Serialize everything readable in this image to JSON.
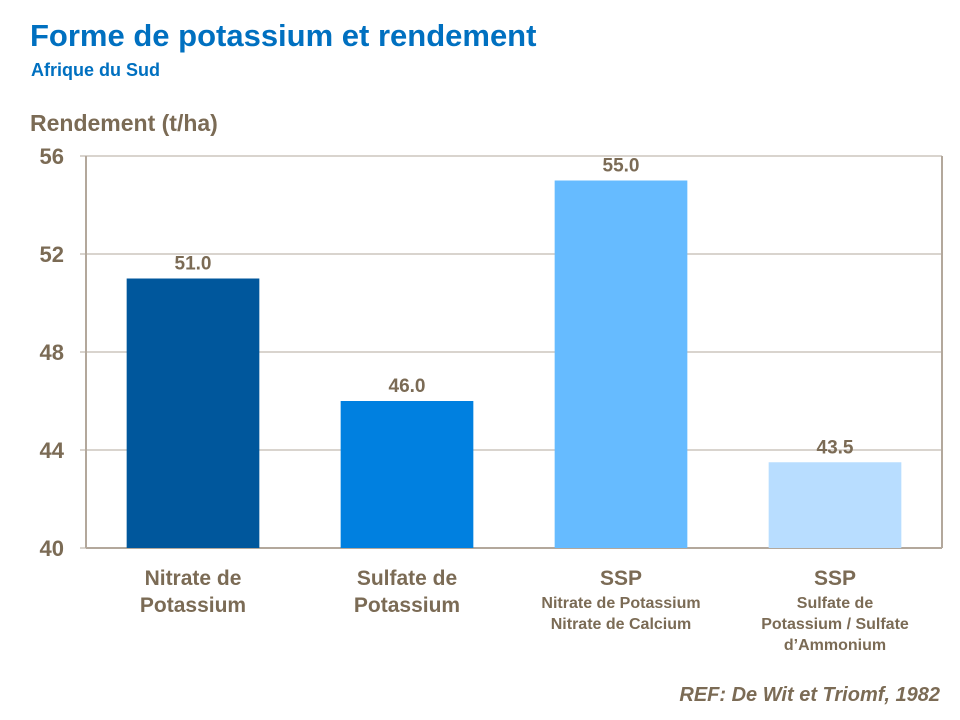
{
  "chart_data": {
    "type": "bar",
    "title": "Forme de potassium et rendement",
    "subtitle": "Afrique du Sud",
    "ylabel": "Rendement (t/ha)",
    "xlabel": "",
    "ylim": [
      40,
      56
    ],
    "yticks": [
      40,
      44,
      48,
      52,
      56
    ],
    "grid": true,
    "categories": [
      {
        "main": [
          "Nitrate de",
          "Potassium"
        ],
        "sub": []
      },
      {
        "main": [
          "Sulfate de",
          "Potassium"
        ],
        "sub": []
      },
      {
        "main": [
          "SSP"
        ],
        "sub": [
          "Nitrate de Potassium",
          "Nitrate de Calcium"
        ]
      },
      {
        "main": [
          "SSP"
        ],
        "sub": [
          "Sulfate de",
          "Potassium / Sulfate",
          "d’Ammonium"
        ]
      }
    ],
    "values": [
      51.0,
      46.0,
      55.0,
      43.5
    ],
    "data_labels": [
      "51.0",
      "46.0",
      "55.0",
      "43.5"
    ],
    "colors": [
      "#00579c",
      "#0080e0",
      "#66bbff",
      "#b8ddff"
    ],
    "reference": "REF: De Wit et Triomf, 1982"
  }
}
